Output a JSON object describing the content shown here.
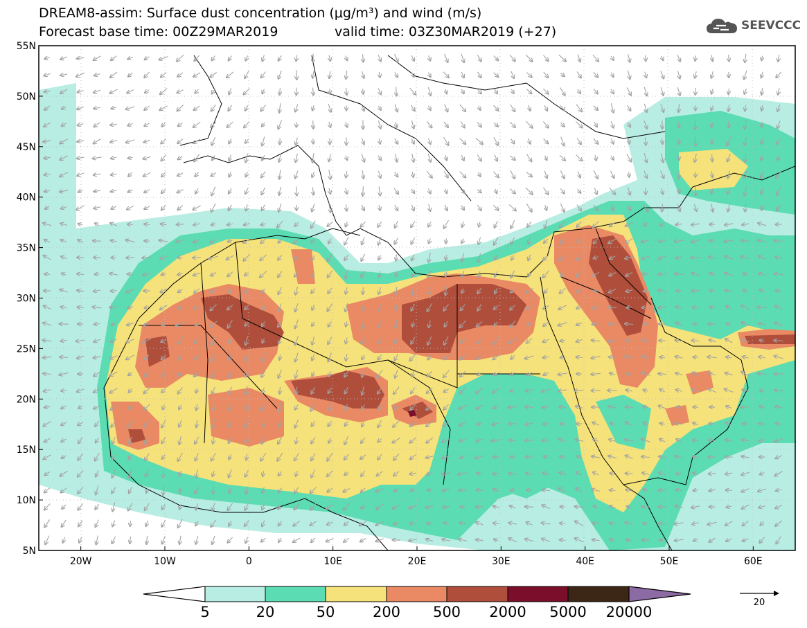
{
  "header": {
    "title_line1": "DREAM8-assim: Surface dust concentration (μg/m³) and wind (m/s)",
    "base_time_label": "Forecast base time: 00Z29MAR2019",
    "valid_time_label": "valid time: 03Z30MAR2019 (+27)"
  },
  "logo": {
    "text": "SEEVCCC",
    "icon": "cloud-logo-icon"
  },
  "map": {
    "lon_range": [
      -25,
      65
    ],
    "lat_range": [
      5,
      55
    ],
    "lat_ticks": [
      {
        "value": 55,
        "label": "55N"
      },
      {
        "value": 50,
        "label": "50N"
      },
      {
        "value": 45,
        "label": "45N"
      },
      {
        "value": 40,
        "label": "40N"
      },
      {
        "value": 35,
        "label": "35N"
      },
      {
        "value": 30,
        "label": "30N"
      },
      {
        "value": 25,
        "label": "25N"
      },
      {
        "value": 20,
        "label": "20N"
      },
      {
        "value": 15,
        "label": "15N"
      },
      {
        "value": 10,
        "label": "10N"
      },
      {
        "value": 5,
        "label": "5N"
      }
    ],
    "lon_ticks": [
      {
        "value": -20,
        "label": "20W"
      },
      {
        "value": -10,
        "label": "10W"
      },
      {
        "value": 0,
        "label": "0"
      },
      {
        "value": 10,
        "label": "10E"
      },
      {
        "value": 20,
        "label": "20E"
      },
      {
        "value": 30,
        "label": "30E"
      },
      {
        "value": 40,
        "label": "40E"
      },
      {
        "value": 50,
        "label": "50E"
      },
      {
        "value": 60,
        "label": "60E"
      }
    ],
    "grid": "dotted",
    "wind_vectors": "gray-arrows"
  },
  "colorbar": {
    "colors": [
      "#ffffff",
      "#b8ede3",
      "#5cdcb2",
      "#f6e27a",
      "#e98a64",
      "#b04e3c",
      "#7b0e2a",
      "#3c2616",
      "#8c6aa3"
    ],
    "labels": [
      "5",
      "20",
      "50",
      "200",
      "500",
      "2000",
      "5000",
      "20000"
    ]
  },
  "wind_legend": {
    "value": "20"
  }
}
